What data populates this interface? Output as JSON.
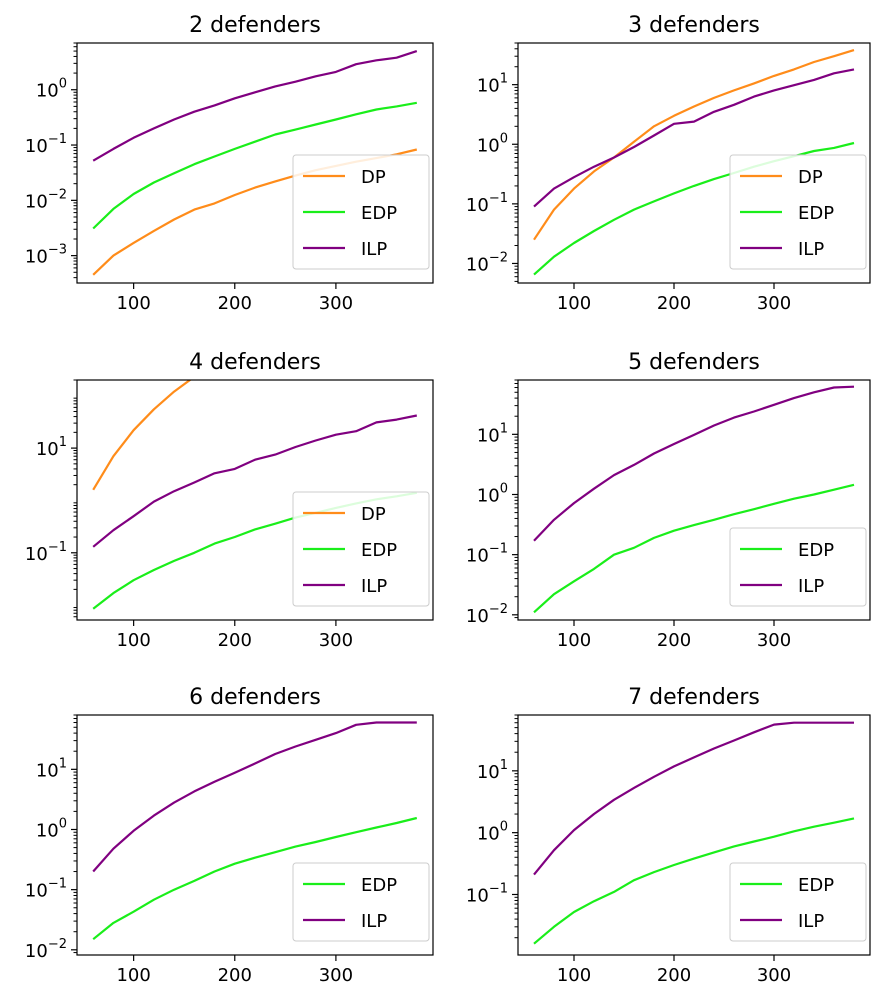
{
  "chart_data": [
    {
      "type": "line",
      "title": "2 defenders",
      "yscale": "log",
      "xlim": [
        44,
        396
      ],
      "ylim": [
        0.00032,
        7.0
      ],
      "xticks": [
        100,
        200,
        300
      ],
      "yticks": [
        {
          "v": 0.001,
          "base": "10",
          "exp": "−3"
        },
        {
          "v": 0.01,
          "base": "10",
          "exp": "−2"
        },
        {
          "v": 0.1,
          "base": "10",
          "exp": "−1"
        },
        {
          "v": 1,
          "base": "10",
          "exp": "0"
        }
      ],
      "legend": {
        "position": "lower-right",
        "entries": [
          "DP",
          "EDP",
          "ILP"
        ]
      },
      "series": [
        {
          "name": "DP",
          "color": "#ff8c1a",
          "x": [
            60,
            80,
            100,
            120,
            140,
            160,
            180,
            200,
            220,
            240,
            260,
            280,
            300,
            320,
            340,
            360,
            380
          ],
          "y": [
            0.00045,
            0.001,
            0.0017,
            0.0028,
            0.0045,
            0.0068,
            0.0088,
            0.0125,
            0.017,
            0.022,
            0.028,
            0.035,
            0.042,
            0.05,
            0.058,
            0.068,
            0.083
          ]
        },
        {
          "name": "EDP",
          "color": "#1aee1a",
          "x": [
            60,
            80,
            100,
            120,
            140,
            160,
            180,
            200,
            220,
            240,
            260,
            280,
            300,
            320,
            340,
            360,
            380
          ],
          "y": [
            0.0031,
            0.007,
            0.013,
            0.021,
            0.031,
            0.045,
            0.062,
            0.085,
            0.115,
            0.155,
            0.19,
            0.235,
            0.29,
            0.36,
            0.44,
            0.5,
            0.58
          ]
        },
        {
          "name": "ILP",
          "color": "#800080",
          "x": [
            60,
            80,
            100,
            120,
            140,
            160,
            180,
            200,
            220,
            240,
            260,
            280,
            300,
            320,
            340,
            360,
            380
          ],
          "y": [
            0.052,
            0.085,
            0.135,
            0.2,
            0.29,
            0.4,
            0.52,
            0.7,
            0.9,
            1.15,
            1.4,
            1.75,
            2.1,
            2.9,
            3.4,
            3.8,
            5.0
          ]
        }
      ]
    },
    {
      "type": "line",
      "title": "3 defenders",
      "yscale": "log",
      "xlim": [
        44,
        396
      ],
      "ylim": [
        0.0047,
        50
      ],
      "xticks": [
        100,
        200,
        300
      ],
      "yticks": [
        {
          "v": 0.01,
          "base": "10",
          "exp": "−2"
        },
        {
          "v": 0.1,
          "base": "10",
          "exp": "−1"
        },
        {
          "v": 1,
          "base": "10",
          "exp": "0"
        },
        {
          "v": 10,
          "base": "10",
          "exp": "1"
        }
      ],
      "legend": {
        "position": "lower-right",
        "entries": [
          "DP",
          "EDP",
          "ILP"
        ]
      },
      "series": [
        {
          "name": "DP",
          "color": "#ff8c1a",
          "x": [
            60,
            80,
            100,
            120,
            140,
            160,
            180,
            200,
            220,
            240,
            260,
            280,
            300,
            320,
            340,
            360,
            380
          ],
          "y": [
            0.025,
            0.08,
            0.18,
            0.35,
            0.6,
            1.1,
            2.0,
            3.0,
            4.3,
            6.0,
            8.0,
            10.5,
            14.0,
            18.0,
            24.0,
            30.0,
            38.0
          ]
        },
        {
          "name": "EDP",
          "color": "#1aee1a",
          "x": [
            60,
            80,
            100,
            120,
            140,
            160,
            180,
            200,
            220,
            240,
            260,
            280,
            300,
            320,
            340,
            360,
            380
          ],
          "y": [
            0.0065,
            0.013,
            0.022,
            0.035,
            0.054,
            0.08,
            0.11,
            0.15,
            0.2,
            0.26,
            0.33,
            0.42,
            0.52,
            0.63,
            0.77,
            0.87,
            1.05
          ]
        },
        {
          "name": "ILP",
          "color": "#800080",
          "x": [
            60,
            80,
            100,
            120,
            140,
            160,
            180,
            200,
            220,
            240,
            260,
            280,
            300,
            320,
            340,
            360,
            380
          ],
          "y": [
            0.09,
            0.18,
            0.28,
            0.42,
            0.6,
            0.9,
            1.4,
            2.2,
            2.4,
            3.5,
            4.6,
            6.3,
            8.0,
            9.8,
            12.0,
            15.5,
            18.0
          ]
        }
      ]
    },
    {
      "type": "line",
      "title": "4 defenders",
      "yscale": "log",
      "xlim": [
        44,
        396
      ],
      "ylim": [
        0.0052,
        200
      ],
      "xticks": [
        100,
        200,
        300
      ],
      "yticks": [
        {
          "v": 0.1,
          "base": "10",
          "exp": "−1"
        },
        {
          "v": 10,
          "base": "10",
          "exp": "1"
        }
      ],
      "legend": {
        "position": "lower-right",
        "entries": [
          "DP",
          "EDP",
          "ILP"
        ]
      },
      "series": [
        {
          "name": "DP",
          "color": "#ff8c1a",
          "x": [
            60,
            80,
            100,
            120,
            140,
            160
          ],
          "y": [
            1.6,
            7.0,
            22.0,
            55.0,
            120.0,
            230.0
          ]
        },
        {
          "name": "EDP",
          "color": "#1aee1a",
          "x": [
            60,
            80,
            100,
            120,
            140,
            160,
            180,
            200,
            220,
            240,
            260,
            280,
            300,
            320,
            340,
            360,
            380
          ],
          "y": [
            0.0085,
            0.017,
            0.03,
            0.047,
            0.07,
            0.1,
            0.15,
            0.2,
            0.28,
            0.36,
            0.47,
            0.58,
            0.72,
            0.88,
            1.05,
            1.2,
            1.4
          ]
        },
        {
          "name": "ILP",
          "color": "#800080",
          "x": [
            60,
            80,
            100,
            120,
            140,
            160,
            180,
            200,
            220,
            240,
            260,
            280,
            300,
            320,
            340,
            360,
            380
          ],
          "y": [
            0.13,
            0.27,
            0.5,
            0.95,
            1.5,
            2.2,
            3.3,
            4.0,
            6.0,
            7.5,
            10.5,
            14.0,
            18.0,
            21.0,
            31.0,
            35.0,
            42.0
          ]
        }
      ]
    },
    {
      "type": "line",
      "title": "5 defenders",
      "yscale": "log",
      "xlim": [
        44,
        396
      ],
      "ylim": [
        0.0082,
        80
      ],
      "xticks": [
        100,
        200,
        300
      ],
      "yticks": [
        {
          "v": 0.01,
          "base": "10",
          "exp": "−2"
        },
        {
          "v": 0.1,
          "base": "10",
          "exp": "−1"
        },
        {
          "v": 1,
          "base": "10",
          "exp": "0"
        },
        {
          "v": 10,
          "base": "10",
          "exp": "1"
        }
      ],
      "legend": {
        "position": "lower-right",
        "entries": [
          "EDP",
          "ILP"
        ]
      },
      "series": [
        {
          "name": "EDP",
          "color": "#1aee1a",
          "x": [
            60,
            80,
            100,
            120,
            140,
            160,
            180,
            200,
            220,
            240,
            260,
            280,
            300,
            320,
            340,
            360,
            380
          ],
          "y": [
            0.011,
            0.022,
            0.036,
            0.058,
            0.1,
            0.13,
            0.19,
            0.25,
            0.31,
            0.38,
            0.47,
            0.57,
            0.7,
            0.85,
            1.0,
            1.2,
            1.45
          ]
        },
        {
          "name": "ILP",
          "color": "#800080",
          "x": [
            60,
            80,
            100,
            120,
            140,
            160,
            180,
            200,
            220,
            240,
            260,
            280,
            300,
            320,
            340,
            360,
            380
          ],
          "y": [
            0.17,
            0.38,
            0.72,
            1.25,
            2.1,
            3.1,
            4.8,
            6.9,
            9.8,
            14.0,
            19.0,
            24.0,
            31.0,
            40.0,
            50.0,
            60.0,
            62.0
          ]
        }
      ]
    },
    {
      "type": "line",
      "title": "6 defenders",
      "yscale": "log",
      "xlim": [
        44,
        396
      ],
      "ylim": [
        0.0082,
        80
      ],
      "xticks": [
        100,
        200,
        300
      ],
      "yticks": [
        {
          "v": 0.01,
          "base": "10",
          "exp": "−2"
        },
        {
          "v": 0.1,
          "base": "10",
          "exp": "−1"
        },
        {
          "v": 1,
          "base": "10",
          "exp": "0"
        },
        {
          "v": 10,
          "base": "10",
          "exp": "1"
        }
      ],
      "legend": {
        "position": "lower-right",
        "entries": [
          "EDP",
          "ILP"
        ]
      },
      "series": [
        {
          "name": "EDP",
          "color": "#1aee1a",
          "x": [
            60,
            80,
            100,
            120,
            140,
            160,
            180,
            200,
            220,
            240,
            260,
            280,
            300,
            320,
            340,
            360,
            380
          ],
          "y": [
            0.015,
            0.028,
            0.043,
            0.068,
            0.1,
            0.14,
            0.2,
            0.27,
            0.34,
            0.42,
            0.52,
            0.62,
            0.75,
            0.9,
            1.08,
            1.28,
            1.55
          ]
        },
        {
          "name": "ILP",
          "color": "#800080",
          "x": [
            60,
            80,
            100,
            120,
            140,
            160,
            180,
            200,
            220,
            240,
            260,
            280,
            300,
            320,
            340,
            360,
            380
          ],
          "y": [
            0.2,
            0.48,
            0.95,
            1.7,
            2.8,
            4.3,
            6.2,
            8.8,
            12.5,
            18.0,
            24.0,
            31.0,
            40.0,
            55.0,
            60.0,
            60.0,
            60.0
          ]
        }
      ]
    },
    {
      "type": "line",
      "title": "7 defenders",
      "yscale": "log",
      "xlim": [
        44,
        396
      ],
      "ylim": [
        0.0105,
        80
      ],
      "xticks": [
        100,
        200,
        300
      ],
      "yticks": [
        {
          "v": 0.1,
          "base": "10",
          "exp": "−1"
        },
        {
          "v": 1,
          "base": "10",
          "exp": "0"
        },
        {
          "v": 10,
          "base": "10",
          "exp": "1"
        }
      ],
      "legend": {
        "position": "lower-right",
        "entries": [
          "EDP",
          "ILP"
        ]
      },
      "series": [
        {
          "name": "EDP",
          "color": "#1aee1a",
          "x": [
            60,
            80,
            100,
            120,
            140,
            160,
            180,
            200,
            220,
            240,
            260,
            280,
            300,
            320,
            340,
            360,
            380
          ],
          "y": [
            0.016,
            0.03,
            0.052,
            0.078,
            0.11,
            0.17,
            0.23,
            0.3,
            0.38,
            0.48,
            0.6,
            0.72,
            0.86,
            1.05,
            1.25,
            1.45,
            1.7
          ]
        },
        {
          "name": "ILP",
          "color": "#800080",
          "x": [
            60,
            80,
            100,
            120,
            140,
            160,
            180,
            200,
            220,
            240,
            260,
            280,
            300,
            320,
            340,
            360,
            380
          ],
          "y": [
            0.21,
            0.52,
            1.1,
            2.0,
            3.4,
            5.3,
            8.0,
            11.8,
            16.5,
            23.0,
            31.0,
            42.0,
            56.0,
            60.0,
            60.0,
            60.0,
            60.0
          ]
        }
      ]
    }
  ]
}
